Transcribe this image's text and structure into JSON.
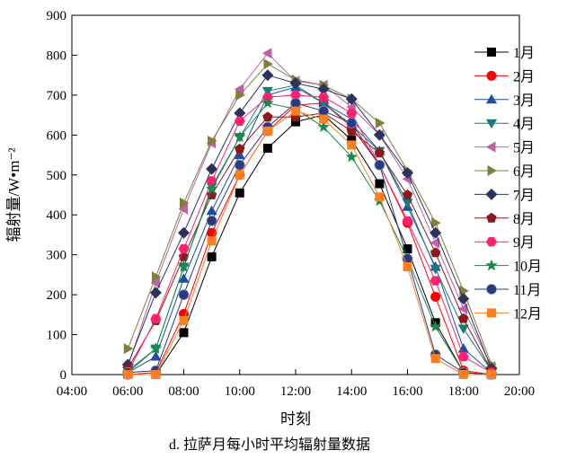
{
  "chart_data": {
    "type": "line",
    "title": "",
    "caption": "d. 拉萨月每小时平均辐射量数据",
    "xlabel": "时刻",
    "ylabel": "辐射量/W•m⁻²",
    "xlim": [
      4,
      20
    ],
    "ylim": [
      0,
      900
    ],
    "x_ticks": [
      4,
      6,
      8,
      10,
      12,
      14,
      16,
      18,
      20
    ],
    "x_tick_labels": [
      "04:00",
      "06:00",
      "08:00",
      "10:00",
      "12:00",
      "14:00",
      "16:00",
      "18:00",
      "20:00"
    ],
    "y_ticks": [
      0,
      100,
      200,
      300,
      400,
      500,
      600,
      700,
      800,
      900
    ],
    "y_tick_labels": [
      "0",
      "100",
      "200",
      "300",
      "400",
      "500",
      "600",
      "700",
      "800",
      "900"
    ],
    "grid": false,
    "legend_position": "right",
    "x": [
      6,
      7,
      8,
      9,
      10,
      11,
      12,
      13,
      14,
      15,
      16,
      17,
      18,
      19
    ],
    "series": [
      {
        "name": "1月",
        "color": "#000000",
        "marker": "square",
        "values": [
          0,
          0,
          105,
          295,
          455,
          567,
          633,
          650,
          588,
          478,
          315,
          130,
          5,
          0
        ]
      },
      {
        "name": "2月",
        "color": "#ff0000",
        "marker": "circle",
        "values": [
          0,
          5,
          152,
          355,
          500,
          610,
          675,
          680,
          620,
          525,
          380,
          195,
          10,
          0
        ]
      },
      {
        "name": "3月",
        "color": "#1f4ea0",
        "marker": "triangle-up",
        "values": [
          5,
          45,
          240,
          410,
          550,
          700,
          720,
          680,
          640,
          560,
          420,
          270,
          65,
          5
        ]
      },
      {
        "name": "4月",
        "color": "#1a7a7a",
        "marker": "triangle-down",
        "values": [
          10,
          65,
          270,
          470,
          595,
          710,
          725,
          680,
          625,
          560,
          430,
          265,
          115,
          10
        ]
      },
      {
        "name": "5月",
        "color": "#c060a8",
        "marker": "triangle-left",
        "values": [
          20,
          230,
          415,
          580,
          715,
          805,
          735,
          725,
          670,
          600,
          490,
          330,
          165,
          20
        ]
      },
      {
        "name": "6月",
        "color": "#80803a",
        "marker": "triangle-right",
        "values": [
          65,
          245,
          430,
          585,
          700,
          778,
          738,
          725,
          690,
          630,
          510,
          380,
          210,
          25
        ]
      },
      {
        "name": "7月",
        "color": "#2c3260",
        "marker": "diamond",
        "values": [
          25,
          205,
          355,
          515,
          655,
          750,
          730,
          715,
          690,
          600,
          505,
          355,
          190,
          15
        ]
      },
      {
        "name": "8月",
        "color": "#8b1a1a",
        "marker": "pentagon",
        "values": [
          15,
          135,
          295,
          450,
          565,
          645,
          645,
          655,
          610,
          555,
          450,
          305,
          140,
          10
        ]
      },
      {
        "name": "9月",
        "color": "#ff2070",
        "marker": "hexagon",
        "values": [
          5,
          140,
          315,
          485,
          635,
          695,
          700,
          695,
          655,
          525,
          385,
          235,
          45,
          5
        ]
      },
      {
        "name": "10月",
        "color": "#1a8a4a",
        "marker": "star",
        "values": [
          5,
          65,
          270,
          465,
          595,
          680,
          665,
          620,
          545,
          435,
          290,
          120,
          5,
          0
        ]
      },
      {
        "name": "11月",
        "color": "#2a3a80",
        "marker": "sphere",
        "values": [
          5,
          10,
          200,
          385,
          525,
          620,
          680,
          660,
          630,
          525,
          290,
          50,
          5,
          0
        ]
      },
      {
        "name": "12月",
        "color": "#ff7f1e",
        "marker": "square",
        "values": [
          0,
          0,
          135,
          335,
          500,
          610,
          660,
          640,
          575,
          445,
          270,
          40,
          0,
          0
        ]
      }
    ]
  }
}
